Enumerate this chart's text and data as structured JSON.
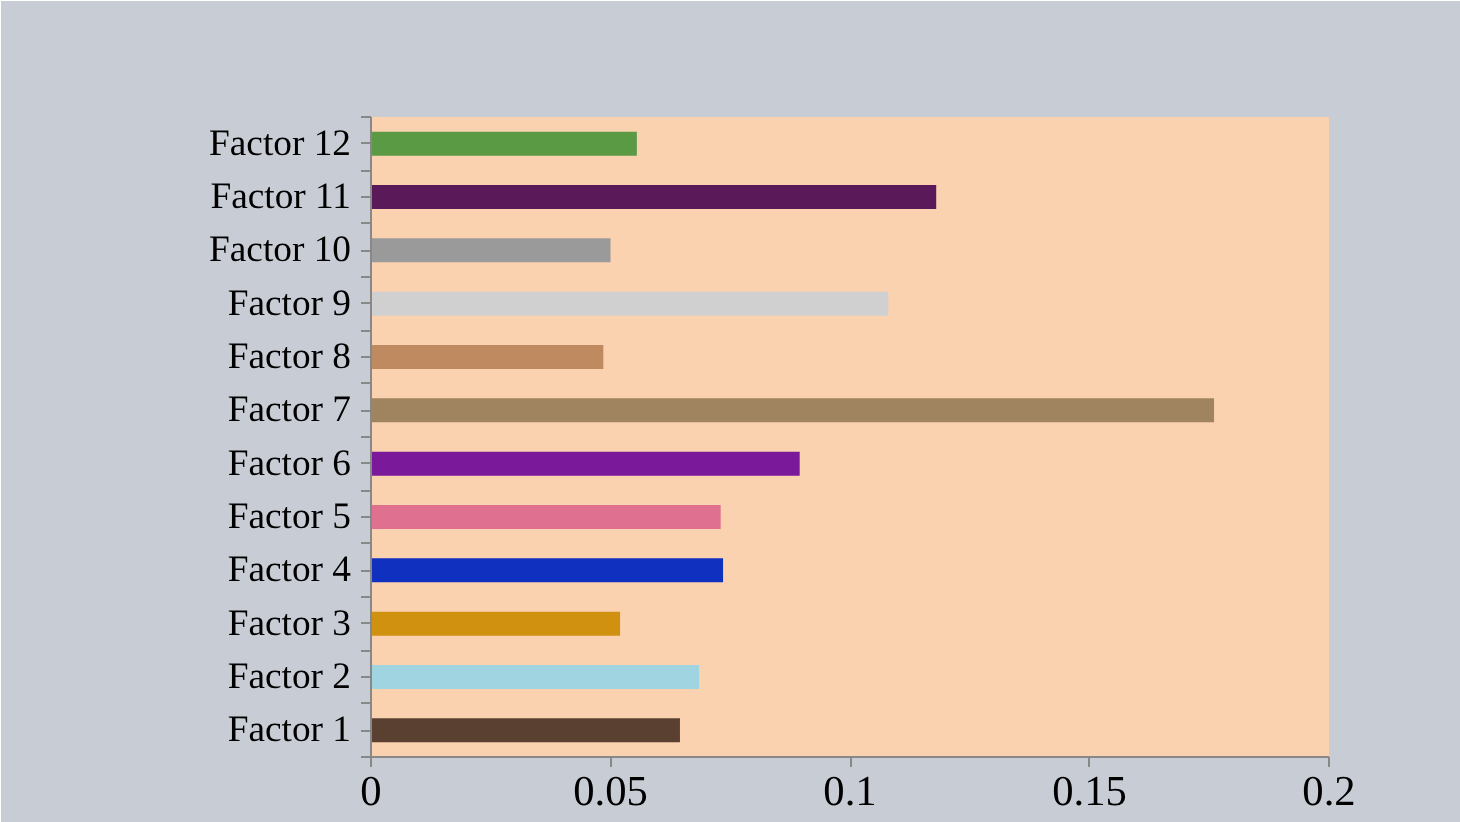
{
  "chart_data": {
    "type": "bar",
    "orientation": "horizontal",
    "categories": [
      "Factor 12",
      "Factor 11",
      "Factor 10",
      "Factor 9",
      "Factor 8",
      "Factor 7",
      "Factor 6",
      "Factor 5",
      "Factor 4",
      "Factor 3",
      "Factor 2",
      "Factor 1"
    ],
    "values": [
      0.0555,
      0.118,
      0.05,
      0.108,
      0.0485,
      0.176,
      0.0895,
      0.073,
      0.0735,
      0.052,
      0.0685,
      0.0645
    ],
    "colors": [
      "#5a9a45",
      "#5a1a5a",
      "#9a9a9a",
      "#d0d0d0",
      "#c08a60",
      "#a08460",
      "#7a1a9a",
      "#e07090",
      "#1030c0",
      "#d09010",
      "#a0d4e0",
      "#5a4030"
    ],
    "xlim": [
      0,
      0.2
    ],
    "xticks": [
      0,
      0.05,
      0.1,
      0.15,
      0.2
    ],
    "grid": false
  }
}
